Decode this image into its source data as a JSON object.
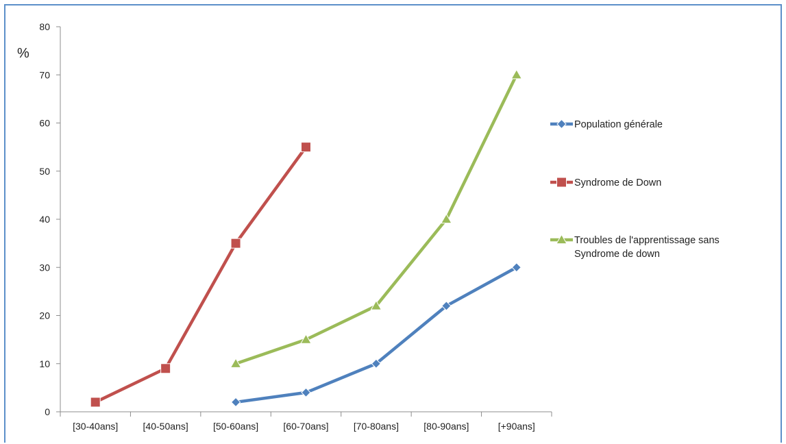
{
  "chart_data": {
    "type": "line",
    "categories": [
      "[30-40ans]",
      "[40-50ans]",
      "[50-60ans]",
      "[60-70ans]",
      "[70-80ans]",
      "[80-90ans]",
      "[+90ans]"
    ],
    "series": [
      {
        "name": "Population générale",
        "values": [
          null,
          null,
          2,
          4,
          10,
          22,
          30
        ],
        "color": "#4f81bd",
        "marker": "diamond"
      },
      {
        "name": "Syndrome de Down",
        "values": [
          2,
          9,
          35,
          55,
          null,
          null,
          null
        ],
        "color": "#c0504d",
        "marker": "square"
      },
      {
        "name": [
          "Troubles de l'apprentissage sans",
          "Syndrome de down"
        ],
        "values": [
          null,
          null,
          10,
          15,
          22,
          40,
          70
        ],
        "color": "#9bbb59",
        "marker": "triangle"
      }
    ],
    "ylabel": "%",
    "ylim": [
      0,
      80
    ],
    "yticks": [
      0,
      10,
      20,
      30,
      40,
      50,
      60,
      70,
      80
    ],
    "grid": false,
    "legend_position": "right"
  }
}
